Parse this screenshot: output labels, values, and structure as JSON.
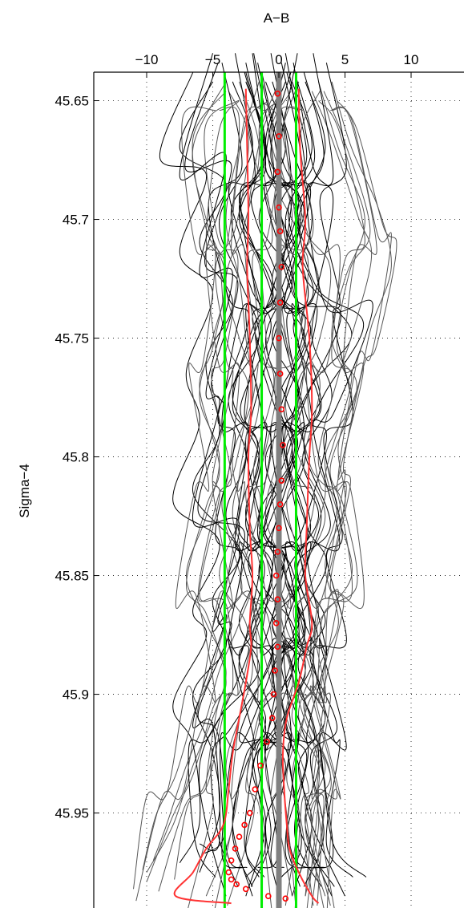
{
  "chart_data": {
    "type": "line",
    "title": "",
    "xlabel": "A−B",
    "ylabel": "Sigma−4",
    "xlim": [
      -14,
      14
    ],
    "ylim": [
      45.638,
      45.99
    ],
    "y_reversed": true,
    "x_axis_position": "top",
    "grid": true,
    "xticks": [
      -10,
      -5,
      0,
      5,
      10
    ],
    "xtick_labels": [
      "−10",
      "−5",
      "0",
      "5",
      "10"
    ],
    "yticks": [
      45.65,
      45.7,
      45.75,
      45.8,
      45.85,
      45.9,
      45.95
    ],
    "ytick_labels": [
      "45.65",
      "45.7",
      "45.75",
      "45.8",
      "45.85",
      "45.9",
      "45.95"
    ],
    "colors": {
      "profiles_dark": "#000000",
      "profiles_gray": "#555555",
      "mean_thick": "#808080",
      "envelope": "#ff3333",
      "reference_lines": "#00ee00",
      "markers": "#ff0000"
    },
    "reference_lines_x": [
      -4.1,
      -1.3,
      1.3
    ],
    "mean_line_x": 0,
    "envelope_left": {
      "x": [
        -2.5,
        -2.4,
        -2.3,
        -2.4,
        -2.2,
        -2.1,
        -2.3,
        -2.2,
        -2.0,
        -2.2,
        -2.1,
        -2.5,
        -3.0,
        -3.5,
        -3.8,
        -4.2,
        -5.5,
        -6.5,
        -7.8,
        -3.6
      ],
      "y": [
        45.645,
        45.67,
        45.7,
        45.72,
        45.75,
        45.78,
        45.8,
        45.83,
        45.85,
        45.87,
        45.88,
        45.895,
        45.91,
        45.925,
        45.94,
        45.955,
        45.965,
        45.975,
        45.985,
        45.988
      ]
    },
    "envelope_right": {
      "x": [
        1.5,
        1.6,
        2.0,
        1.8,
        2.3,
        2.5,
        2.3,
        2.1,
        2.0,
        2.5,
        2.1,
        1.5,
        0.6,
        0.3,
        0.4,
        0.6,
        0.8,
        1.5,
        2.5,
        3.0
      ],
      "y": [
        45.645,
        45.67,
        45.7,
        45.72,
        45.75,
        45.78,
        45.8,
        45.83,
        45.85,
        45.87,
        45.88,
        45.895,
        45.91,
        45.925,
        45.94,
        45.955,
        45.965,
        45.975,
        45.985,
        45.988
      ]
    },
    "mean_markers": {
      "x": [
        -0.1,
        0.0,
        -0.1,
        0.0,
        0.1,
        0.2,
        0.1,
        0.0,
        0.1,
        0.2,
        0.3,
        0.2,
        0.1,
        0.0,
        -0.1,
        -0.2,
        -0.1,
        -0.2,
        -0.1,
        -0.3,
        -0.4,
        -0.5,
        -0.9,
        -1.4,
        -1.8,
        -2.2,
        -2.6,
        -3.0,
        -3.3,
        -3.6,
        -3.8,
        -3.6,
        -3.2,
        -2.5,
        -0.8,
        0.5
      ],
      "y": [
        45.647,
        45.665,
        45.68,
        45.695,
        45.705,
        45.72,
        45.735,
        45.75,
        45.765,
        45.78,
        45.795,
        45.81,
        45.82,
        45.83,
        45.84,
        45.85,
        45.86,
        45.87,
        45.88,
        45.89,
        45.9,
        45.91,
        45.92,
        45.93,
        45.94,
        45.95,
        45.955,
        45.96,
        45.965,
        45.97,
        45.975,
        45.978,
        45.98,
        45.982,
        45.985,
        45.986
      ]
    },
    "profiles_dark": [
      {
        "x": [
          -3.5,
          -2.0,
          -4.5,
          -3.0,
          -1.5,
          -3.8,
          -2.5,
          -4.0,
          -2.0,
          -3.0,
          -1.5,
          -4.5,
          -6.0,
          -5.5,
          -4.0
        ],
        "y": [
          45.642,
          45.67,
          45.7,
          45.725,
          45.75,
          45.775,
          45.8,
          45.825,
          45.85,
          45.87,
          45.89,
          45.91,
          45.93,
          45.955,
          45.985
        ]
      },
      {
        "x": [
          2.0,
          3.5,
          1.5,
          3.0,
          2.5,
          4.0,
          1.8,
          3.2,
          2.0,
          3.5,
          1.0,
          2.5,
          3.0,
          2.0,
          4.0
        ],
        "y": [
          45.642,
          45.67,
          45.7,
          45.725,
          45.75,
          45.775,
          45.8,
          45.825,
          45.85,
          45.87,
          45.89,
          45.91,
          45.93,
          45.955,
          45.985
        ]
      },
      {
        "x": [
          -1.0,
          0.5,
          -1.5,
          1.0,
          -0.5,
          1.5,
          -1.0,
          0.5,
          2.0,
          -0.5,
          1.0,
          -1.5,
          0.5,
          -1.0,
          0.0
        ],
        "y": [
          45.642,
          45.67,
          45.7,
          45.725,
          45.75,
          45.775,
          45.8,
          45.825,
          45.85,
          45.87,
          45.89,
          45.91,
          45.93,
          45.955,
          45.985
        ]
      },
      {
        "x": [
          -5.0,
          -7.5,
          -4.0,
          -6.0,
          -3.5,
          -5.5,
          -4.5,
          -6.5,
          -3.0,
          -5.0,
          -4.0,
          -6.5,
          -5.0,
          -4.5,
          -6.0
        ],
        "y": [
          45.642,
          45.67,
          45.685,
          45.71,
          45.735,
          45.76,
          45.79,
          45.815,
          45.84,
          45.86,
          45.88,
          45.9,
          45.925,
          45.95,
          45.975
        ]
      },
      {
        "x": [
          0.5,
          -1.0,
          1.5,
          -0.5,
          2.0,
          0.0,
          1.0,
          -1.5,
          0.5,
          1.5,
          -0.5,
          0.0,
          -2.0,
          -1.0,
          -2.5
        ],
        "y": [
          45.642,
          45.67,
          45.7,
          45.725,
          45.75,
          45.775,
          45.8,
          45.825,
          45.85,
          45.87,
          45.89,
          45.91,
          45.93,
          45.955,
          45.985
        ]
      },
      {
        "x": [
          -2.5,
          -1.0,
          -3.0,
          -0.5,
          -2.0,
          -3.5,
          -1.5,
          -2.5,
          -0.5,
          -2.0,
          -3.0,
          -1.0,
          -2.5,
          -3.5,
          -2.0
        ],
        "y": [
          45.642,
          45.67,
          45.7,
          45.725,
          45.75,
          45.775,
          45.8,
          45.825,
          45.85,
          45.87,
          45.89,
          45.91,
          45.93,
          45.955,
          45.985
        ]
      },
      {
        "x": [
          1.0,
          2.5,
          0.5,
          2.0,
          5.5,
          2.5,
          1.0,
          3.0,
          0.5,
          2.0,
          1.5,
          3.5,
          1.5,
          2.5,
          1.0
        ],
        "y": [
          45.642,
          45.67,
          45.7,
          45.725,
          45.748,
          45.77,
          45.8,
          45.825,
          45.85,
          45.87,
          45.89,
          45.91,
          45.93,
          45.955,
          45.985
        ]
      },
      {
        "x": [
          -0.5,
          1.0,
          2.5,
          1.0,
          -1.0,
          0.5,
          2.0,
          0.0,
          -1.5,
          1.0,
          2.0,
          0.5,
          1.5,
          2.5,
          5.0
        ],
        "y": [
          45.642,
          45.67,
          45.7,
          45.725,
          45.75,
          45.775,
          45.8,
          45.825,
          45.85,
          45.87,
          45.89,
          45.91,
          45.93,
          45.955,
          45.985
        ]
      }
    ],
    "profiles_gray": [
      {
        "x": [
          -1.5,
          -3.0,
          -4.0,
          -3.0,
          -2.5,
          -2.0,
          -3.5,
          -3.0,
          -4.5,
          -2.5,
          -2.0,
          -3.0,
          -4.0,
          -3.5,
          -5.5
        ],
        "y": [
          45.642,
          45.67,
          45.7,
          45.725,
          45.75,
          45.775,
          45.8,
          45.825,
          45.85,
          45.87,
          45.89,
          45.91,
          45.93,
          45.955,
          45.985
        ]
      },
      {
        "x": [
          4.0,
          5.5,
          7.5,
          8.5,
          7.0,
          6.0,
          4.5,
          5.0,
          3.5,
          4.5,
          3.0,
          3.5,
          2.5,
          3.0,
          2.0
        ],
        "y": [
          45.642,
          45.67,
          45.695,
          45.72,
          45.745,
          45.77,
          45.795,
          45.82,
          45.845,
          45.87,
          45.89,
          45.91,
          45.93,
          45.955,
          45.985
        ]
      },
      {
        "x": [
          3.0,
          4.5,
          6.5,
          5.0,
          4.0,
          5.5,
          3.5,
          4.5,
          5.5,
          3.0,
          2.5,
          1.5,
          3.5,
          2.0,
          3.5
        ],
        "y": [
          45.642,
          45.67,
          45.7,
          45.725,
          45.75,
          45.775,
          45.8,
          45.825,
          45.85,
          45.87,
          45.89,
          45.91,
          45.93,
          45.955,
          45.985
        ]
      },
      {
        "x": [
          -4.0,
          -6.5,
          -5.5,
          -4.0,
          -5.0,
          -6.0,
          -4.5,
          -5.5,
          -7.0,
          -5.5,
          -4.0,
          -5.0,
          -6.5,
          -8.0,
          -10.0
        ],
        "y": [
          45.642,
          45.67,
          45.7,
          45.725,
          45.75,
          45.775,
          45.8,
          45.825,
          45.85,
          45.87,
          45.89,
          45.91,
          45.93,
          45.955,
          45.975
        ]
      },
      {
        "x": [
          0.0,
          -1.5,
          1.0,
          3.0,
          2.0,
          0.5,
          1.5,
          3.5,
          1.5,
          0.5,
          2.0,
          1.0,
          3.0,
          2.5,
          2.0
        ],
        "y": [
          45.642,
          45.67,
          45.7,
          45.725,
          45.75,
          45.775,
          45.8,
          45.825,
          45.85,
          45.87,
          45.89,
          45.91,
          45.93,
          45.955,
          45.985
        ]
      },
      {
        "x": [
          -3.0,
          -1.5,
          -2.5,
          -4.0,
          -3.0,
          -1.5,
          -2.5,
          -3.5,
          -2.0,
          -3.0,
          -4.5,
          -5.5,
          -7.0,
          -8.5,
          -9.5
        ],
        "y": [
          45.642,
          45.67,
          45.7,
          45.725,
          45.75,
          45.775,
          45.8,
          45.825,
          45.85,
          45.87,
          45.89,
          45.91,
          45.93,
          45.955,
          45.97
        ]
      },
      {
        "x": [
          1.5,
          0.0,
          1.0,
          -0.5,
          0.5,
          1.5,
          0.0,
          -1.0,
          0.5,
          -0.5,
          1.0,
          0.5,
          -1.0,
          0.0,
          1.0
        ],
        "y": [
          45.642,
          45.67,
          45.7,
          45.725,
          45.75,
          45.775,
          45.8,
          45.825,
          45.85,
          45.87,
          45.89,
          45.91,
          45.93,
          45.955,
          45.985
        ]
      }
    ],
    "profiles_dark_repeat": 4,
    "profiles_gray_repeat": 4
  }
}
